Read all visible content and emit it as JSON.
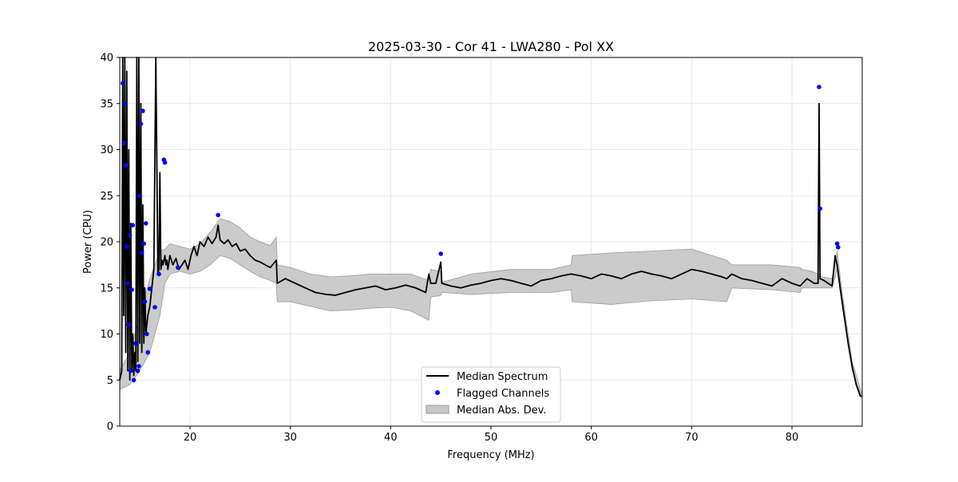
{
  "chart_data": {
    "type": "line",
    "title": "2025-03-30 - Cor 41 - LWA280 - Pol XX",
    "xlabel": "Frequency (MHz)",
    "ylabel": "Power (CPU)",
    "xlim": [
      13.0,
      87.0
    ],
    "ylim": [
      0,
      40
    ],
    "x_ticks": [
      20,
      30,
      40,
      50,
      60,
      70,
      80
    ],
    "y_ticks": [
      0,
      5,
      10,
      15,
      20,
      25,
      30,
      35,
      40
    ],
    "x_tick_labels": [
      "20",
      "30",
      "40",
      "50",
      "60",
      "70",
      "80"
    ],
    "y_tick_labels": [
      "0",
      "5",
      "10",
      "15",
      "20",
      "25",
      "30",
      "35",
      "40"
    ],
    "grid": true,
    "legend_position": "bottom-center",
    "legend": [
      {
        "label": "Median Spectrum",
        "kind": "line",
        "color": "#000000"
      },
      {
        "label": "Flagged Channels",
        "kind": "marker",
        "color": "#0000ff"
      },
      {
        "label": "Median Abs. Dev.",
        "kind": "patch",
        "color": "#c8c8c8"
      }
    ],
    "median_spectrum": {
      "name": "Median Spectrum",
      "color": "#000000",
      "x": [
        13.0,
        13.2,
        13.3,
        13.4,
        13.5,
        13.6,
        13.7,
        13.8,
        13.9,
        14.0,
        14.1,
        14.2,
        14.3,
        14.4,
        14.5,
        14.6,
        14.7,
        14.8,
        14.9,
        15.0,
        15.1,
        15.2,
        15.3,
        15.4,
        15.5,
        15.6,
        15.7,
        15.8,
        15.9,
        16.0,
        16.2,
        16.4,
        16.6,
        16.8,
        16.9,
        17.0,
        17.1,
        17.2,
        17.3,
        17.5,
        17.6,
        17.7,
        17.8,
        18.0,
        18.3,
        18.6,
        18.9,
        19.2,
        19.5,
        19.8,
        20.1,
        20.4,
        20.7,
        21.0,
        21.4,
        21.8,
        22.2,
        22.6,
        22.8,
        23.0,
        23.4,
        23.8,
        24.2,
        24.6,
        25.0,
        25.5,
        26.0,
        26.5,
        27.0,
        27.5,
        28.0,
        28.6,
        28.7,
        29.5,
        30.5,
        31.5,
        32.5,
        33.5,
        34.5,
        35.5,
        36.5,
        37.5,
        38.5,
        39.5,
        40.5,
        41.5,
        42.5,
        43.5,
        43.8,
        44.0,
        44.5,
        45.0,
        45.1,
        46.0,
        47.0,
        48.0,
        49.0,
        50.0,
        51.0,
        52.0,
        53.0,
        54.0,
        55.0,
        56.0,
        57.0,
        58.0,
        59.0,
        60.0,
        61.0,
        62.0,
        63.0,
        64.0,
        65.0,
        66.0,
        67.0,
        68.0,
        69.0,
        70.0,
        71.0,
        72.0,
        73.0,
        73.5,
        74.0,
        75.0,
        76.0,
        77.0,
        78.0,
        79.0,
        80.0,
        80.8,
        81.5,
        82.2,
        82.6,
        82.7,
        82.8,
        83.2,
        83.6,
        84.0,
        84.3,
        84.5,
        84.8,
        85.2,
        85.6,
        86.0,
        86.4,
        86.8,
        87.0
      ],
      "y": [
        5.0,
        6.0,
        40.0,
        12.0,
        40.0,
        8.0,
        38.5,
        6.0,
        30.0,
        5.0,
        22.0,
        6.0,
        10.0,
        5.5,
        8.0,
        6.0,
        40.0,
        7.0,
        40.0,
        9.0,
        35.0,
        8.0,
        24.0,
        9.0,
        15.0,
        10.0,
        11.0,
        12.0,
        12.5,
        13.0,
        15.0,
        17.0,
        40.0,
        16.5,
        17.0,
        27.5,
        17.0,
        18.0,
        17.5,
        18.5,
        17.5,
        18.0,
        17.0,
        18.5,
        17.5,
        18.2,
        17.0,
        17.5,
        18.0,
        17.0,
        18.5,
        19.5,
        18.5,
        20.0,
        19.5,
        20.5,
        19.8,
        20.5,
        21.8,
        20.2,
        19.8,
        20.2,
        19.5,
        19.8,
        19.0,
        19.2,
        18.5,
        18.0,
        17.8,
        17.5,
        17.2,
        18.0,
        15.5,
        16.0,
        15.5,
        15.0,
        14.5,
        14.3,
        14.2,
        14.5,
        14.8,
        15.0,
        15.2,
        14.8,
        15.0,
        15.3,
        15.0,
        14.5,
        16.5,
        15.5,
        15.5,
        17.8,
        15.5,
        15.2,
        15.0,
        15.3,
        15.5,
        15.8,
        16.0,
        15.8,
        15.5,
        15.2,
        15.8,
        16.0,
        16.3,
        16.5,
        16.3,
        16.0,
        16.5,
        16.3,
        16.0,
        16.5,
        16.8,
        16.5,
        16.3,
        16.0,
        16.5,
        17.0,
        16.8,
        16.5,
        16.2,
        16.0,
        16.5,
        16.0,
        15.8,
        15.5,
        15.2,
        16.0,
        15.5,
        15.2,
        16.0,
        15.5,
        15.5,
        35.0,
        16.0,
        15.8,
        15.5,
        15.2,
        18.5,
        17.5,
        15.0,
        12.0,
        9.0,
        6.5,
        4.5,
        3.3,
        3.2
      ]
    },
    "median_abs_dev": {
      "name": "Median Abs. Dev.",
      "color": "#c8c8c8",
      "x": [
        13.0,
        14.0,
        15.0,
        16.0,
        17.0,
        17.5,
        18.0,
        19.0,
        20.0,
        21.0,
        22.0,
        23.0,
        24.0,
        25.0,
        26.0,
        27.0,
        28.0,
        28.6,
        28.7,
        30.0,
        32.0,
        34.0,
        36.0,
        38.0,
        40.0,
        42.0,
        43.8,
        44.0,
        45.0,
        45.1,
        48.0,
        52.0,
        56.0,
        58.0,
        58.1,
        62.0,
        66.0,
        70.0,
        73.5,
        74.0,
        78.0,
        80.8,
        81.0,
        82.0,
        82.6,
        83.0,
        84.0,
        84.5,
        85.0,
        86.0,
        87.0
      ],
      "lower": [
        4.0,
        4.5,
        6.0,
        8.0,
        12.0,
        15.5,
        16.5,
        16.8,
        16.5,
        16.8,
        17.5,
        18.5,
        18.2,
        17.5,
        16.8,
        16.2,
        15.8,
        15.5,
        13.5,
        13.5,
        13.0,
        12.5,
        12.6,
        12.8,
        12.9,
        12.5,
        11.5,
        14.0,
        14.2,
        14.5,
        14.3,
        14.5,
        14.5,
        14.8,
        13.5,
        13.2,
        13.6,
        13.8,
        13.5,
        15.0,
        14.8,
        14.5,
        15.0,
        15.0,
        15.0,
        15.0,
        15.0,
        17.0,
        13.0,
        6.0,
        3.0
      ],
      "upper": [
        6.0,
        8.0,
        12.0,
        16.0,
        19.0,
        19.2,
        19.8,
        19.5,
        19.2,
        19.8,
        21.0,
        22.5,
        22.2,
        21.5,
        20.5,
        20.0,
        19.6,
        20.5,
        17.5,
        17.2,
        16.5,
        16.2,
        16.3,
        16.5,
        16.5,
        16.5,
        15.8,
        17.0,
        16.8,
        15.6,
        16.5,
        17.0,
        17.0,
        17.5,
        18.5,
        18.8,
        19.0,
        19.2,
        18.0,
        17.5,
        17.5,
        17.2,
        17.0,
        16.8,
        16.5,
        16.2,
        16.0,
        19.0,
        14.5,
        7.0,
        3.4
      ]
    },
    "flagged_channels": {
      "name": "Flagged Channels",
      "color": "#0000ff",
      "x": [
        13.3,
        13.4,
        13.5,
        13.6,
        13.7,
        13.8,
        13.9,
        14.0,
        14.1,
        14.2,
        14.3,
        14.4,
        14.6,
        14.8,
        14.9,
        15.0,
        15.1,
        15.2,
        15.3,
        15.4,
        15.5,
        15.6,
        15.7,
        15.8,
        16.0,
        16.5,
        16.9,
        17.4,
        17.5,
        18.8,
        22.8,
        45.0,
        82.7,
        82.8,
        84.5,
        84.6
      ],
      "y": [
        37.2,
        30.7,
        35.0,
        28.3,
        19.5,
        15.5,
        11.0,
        20.7,
        6.0,
        14.8,
        21.8,
        5.0,
        9.0,
        6.0,
        6.5,
        25.0,
        32.8,
        18.8,
        34.2,
        19.8,
        13.5,
        22.0,
        10.0,
        8.0,
        14.9,
        12.9,
        16.5,
        28.9,
        28.6,
        17.2,
        22.9,
        18.7,
        36.8,
        23.6,
        19.8,
        19.4
      ]
    }
  }
}
